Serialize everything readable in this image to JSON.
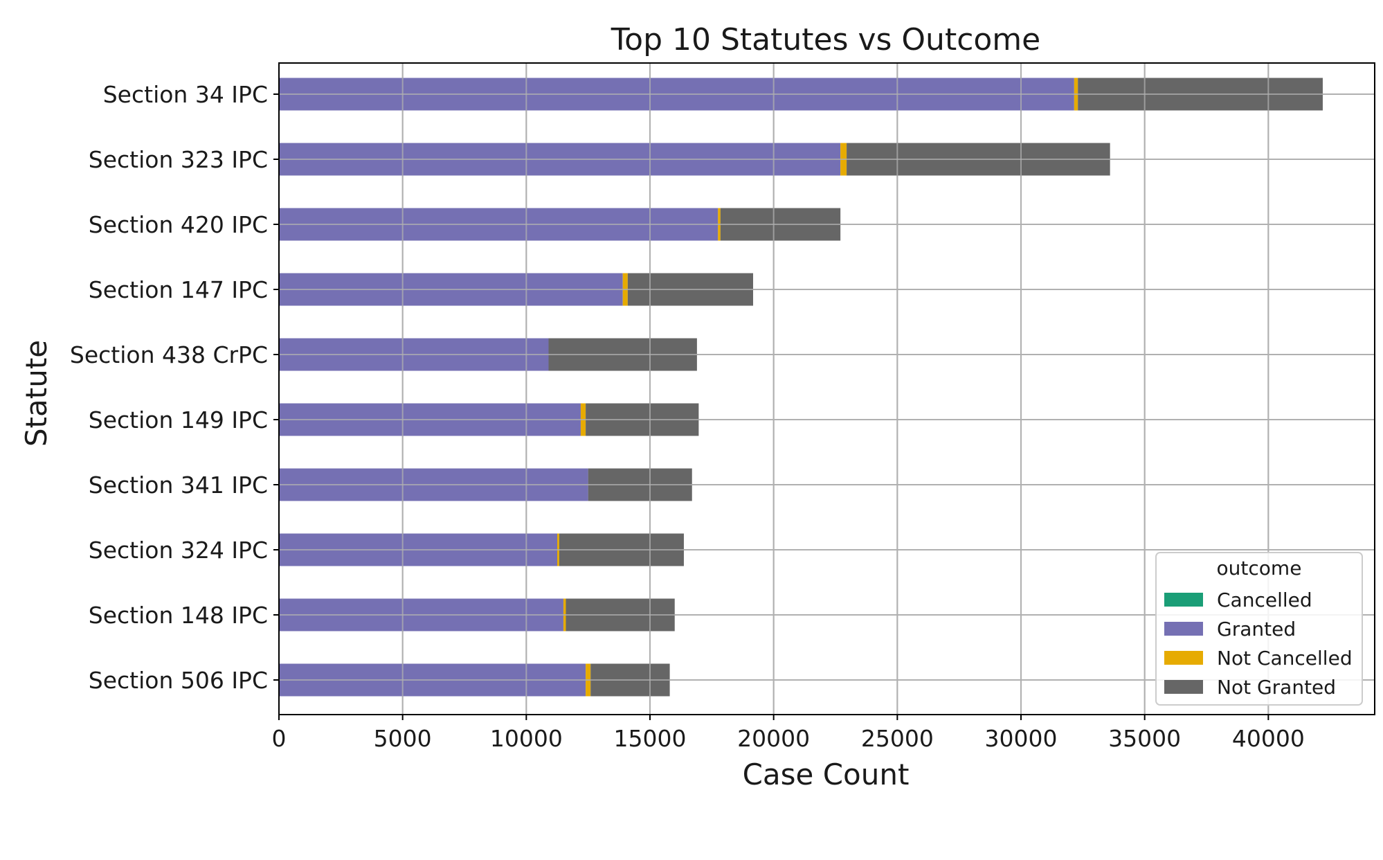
{
  "chart_data": {
    "type": "bar",
    "orientation": "horizontal",
    "stacked": true,
    "title": "Top 10 Statutes vs Outcome",
    "xlabel": "Case Count",
    "ylabel": "Statute",
    "xlim": [
      0,
      44300
    ],
    "xticks": [
      0,
      5000,
      10000,
      15000,
      20000,
      25000,
      30000,
      35000,
      40000
    ],
    "xtick_labels": [
      "0",
      "5000",
      "10000",
      "15000",
      "20000",
      "25000",
      "30000",
      "35000",
      "40000"
    ],
    "grid": true,
    "legend_title": "outcome",
    "legend_position": "lower-right",
    "categories": [
      "Section 34 IPC",
      "Section 323 IPC",
      "Section 420 IPC",
      "Section 147 IPC",
      "Section 438 CrPC",
      "Section 149 IPC",
      "Section 341 IPC",
      "Section 324 IPC",
      "Section 148 IPC",
      "Section 506 IPC"
    ],
    "series": [
      {
        "name": "Cancelled",
        "color": "#1b9e77",
        "values": [
          0,
          0,
          0,
          0,
          0,
          0,
          0,
          0,
          0,
          0
        ]
      },
      {
        "name": "Granted",
        "color": "#7570b3",
        "values": [
          32150,
          22700,
          17750,
          13900,
          10900,
          12200,
          12500,
          11250,
          11500,
          12400
        ]
      },
      {
        "name": "Not Cancelled",
        "color": "#e6ab02",
        "values": [
          150,
          250,
          100,
          200,
          0,
          200,
          0,
          80,
          100,
          200
        ]
      },
      {
        "name": "Not Granted",
        "color": "#666666",
        "values": [
          9900,
          10650,
          4850,
          5070,
          6000,
          4570,
          4200,
          5040,
          4400,
          3200
        ]
      }
    ]
  }
}
